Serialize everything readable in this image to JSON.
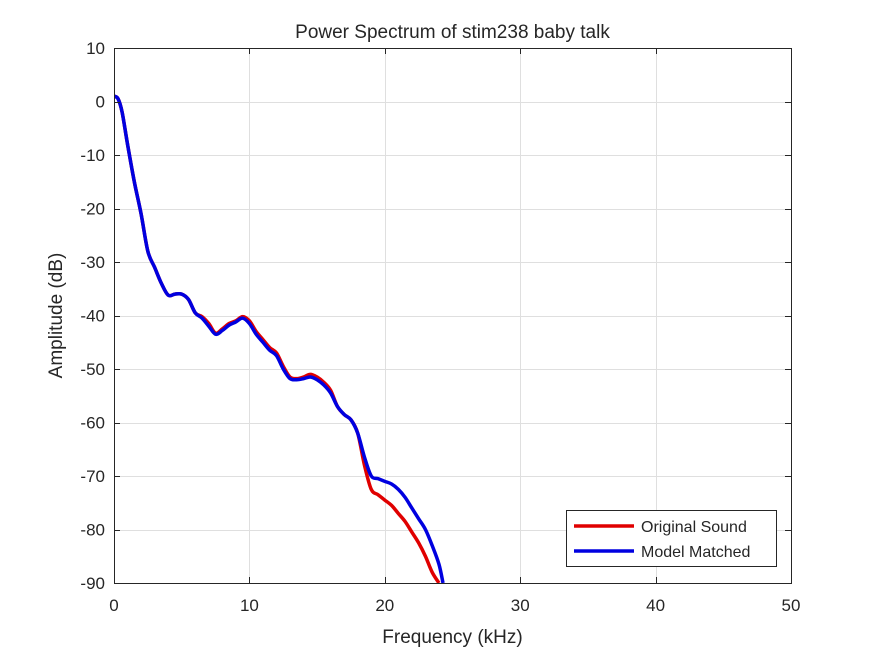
{
  "chart_data": {
    "type": "line",
    "title": "Power Spectrum of stim238 baby talk",
    "xlabel": "Frequency (kHz)",
    "ylabel": "Amplitude (dB)",
    "xlim": [
      0,
      50
    ],
    "ylim": [
      -90,
      10
    ],
    "xticks": [
      0,
      10,
      20,
      30,
      40,
      50
    ],
    "yticks": [
      10,
      0,
      -10,
      -20,
      -30,
      -40,
      -50,
      -60,
      -70,
      -80,
      -90
    ],
    "grid": true,
    "legend_position": "bottom-right",
    "series": [
      {
        "name": "Original Sound",
        "color": "#e00000",
        "x": [
          0,
          0.3,
          0.6,
          1.0,
          1.5,
          2.0,
          2.5,
          3.0,
          3.5,
          4.0,
          4.5,
          5.0,
          5.5,
          6.0,
          6.5,
          7.0,
          7.5,
          8.0,
          8.5,
          9.0,
          9.5,
          10.0,
          10.5,
          11.0,
          11.5,
          12.0,
          12.5,
          13.0,
          13.5,
          14.0,
          14.5,
          15.0,
          15.5,
          16.0,
          16.5,
          17.0,
          17.5,
          18.0,
          18.5,
          19.0,
          19.5,
          20.0,
          20.5,
          21.0,
          21.5,
          22.0,
          22.5,
          23.0,
          23.5,
          24.0
        ],
        "y": [
          1.0,
          0.5,
          -2.0,
          -8.0,
          -15.0,
          -21.0,
          -28.0,
          -31.0,
          -34.0,
          -36.2,
          -36.0,
          -36.0,
          -37.0,
          -39.5,
          -40.2,
          -41.5,
          -43.3,
          -42.5,
          -41.5,
          -41.0,
          -40.2,
          -41.0,
          -43.0,
          -44.5,
          -46.0,
          -47.0,
          -49.5,
          -51.5,
          -51.8,
          -51.5,
          -51.0,
          -51.5,
          -52.5,
          -54.0,
          -57.0,
          -58.5,
          -59.5,
          -62.0,
          -68.0,
          -72.5,
          -73.5,
          -74.5,
          -75.5,
          -77.0,
          -78.5,
          -80.5,
          -82.5,
          -85.0,
          -88.0,
          -90.0
        ]
      },
      {
        "name": "Model Matched",
        "color": "#0000e0",
        "x": [
          0,
          0.3,
          0.6,
          1.0,
          1.5,
          2.0,
          2.5,
          3.0,
          3.5,
          4.0,
          4.5,
          5.0,
          5.5,
          6.0,
          6.5,
          7.0,
          7.5,
          8.0,
          8.5,
          9.0,
          9.5,
          10.0,
          10.5,
          11.0,
          11.5,
          12.0,
          12.5,
          13.0,
          13.5,
          14.0,
          14.5,
          15.0,
          15.5,
          16.0,
          16.5,
          17.0,
          17.5,
          18.0,
          18.5,
          19.0,
          19.5,
          20.0,
          20.5,
          21.0,
          21.5,
          22.0,
          22.5,
          23.0,
          23.5,
          24.0,
          24.3
        ],
        "y": [
          1.0,
          0.5,
          -2.0,
          -8.0,
          -15.0,
          -21.0,
          -28.0,
          -31.0,
          -34.0,
          -36.2,
          -36.0,
          -36.0,
          -37.0,
          -39.5,
          -40.5,
          -42.0,
          -43.5,
          -42.8,
          -41.8,
          -41.2,
          -40.5,
          -41.5,
          -43.5,
          -45.0,
          -46.5,
          -47.5,
          -50.0,
          -51.8,
          -52.0,
          -51.8,
          -51.5,
          -52.0,
          -53.0,
          -54.5,
          -57.0,
          -58.5,
          -59.5,
          -62.0,
          -66.5,
          -70.0,
          -70.5,
          -71.0,
          -71.5,
          -72.5,
          -74.0,
          -76.0,
          -78.0,
          -80.0,
          -83.0,
          -86.5,
          -90.0
        ]
      }
    ]
  }
}
